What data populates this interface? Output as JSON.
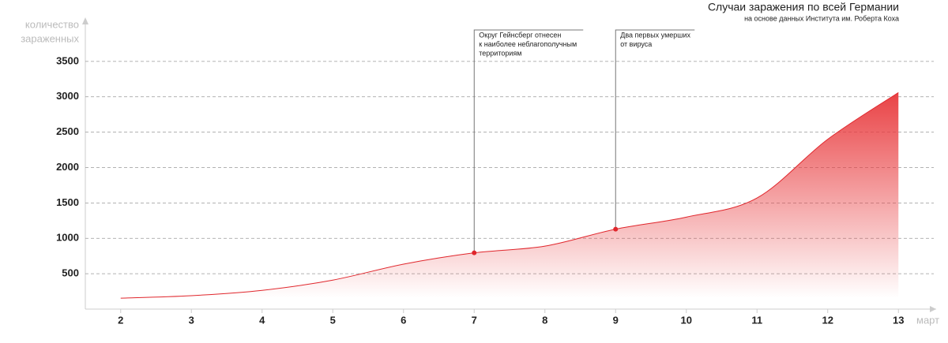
{
  "chart_data": {
    "type": "area",
    "title": "Случаи заражения по всей Германии",
    "subtitle": "на основе данных Института им. Роберта Коха",
    "y_label": [
      "количество",
      "зараженных"
    ],
    "x_label": "март",
    "x": [
      2,
      3,
      4,
      5,
      6,
      7,
      8,
      9,
      10,
      11,
      12,
      13
    ],
    "series": [
      {
        "color": "#e0262c",
        "values": [
          155,
          190,
          265,
          410,
          635,
          795,
          890,
          1130,
          1300,
          1570,
          2400,
          3060
        ]
      }
    ],
    "xlim": [
      1.5,
      13.5
    ],
    "xticks": [
      2,
      3,
      4,
      5,
      6,
      7,
      8,
      9,
      10,
      11,
      12,
      13
    ],
    "ylim": [
      0,
      4000
    ],
    "yticks": [
      500,
      1000,
      1500,
      2000,
      2500,
      3000,
      3500
    ],
    "grid": true,
    "annotations": [
      {
        "x": 7,
        "lines": [
          "Округ Гейнсберг отнесен",
          "к наиболее неблагополучным",
          "территориям"
        ]
      },
      {
        "x": 9,
        "lines": [
          "Два первых умерших",
          "от вируса"
        ]
      }
    ]
  }
}
